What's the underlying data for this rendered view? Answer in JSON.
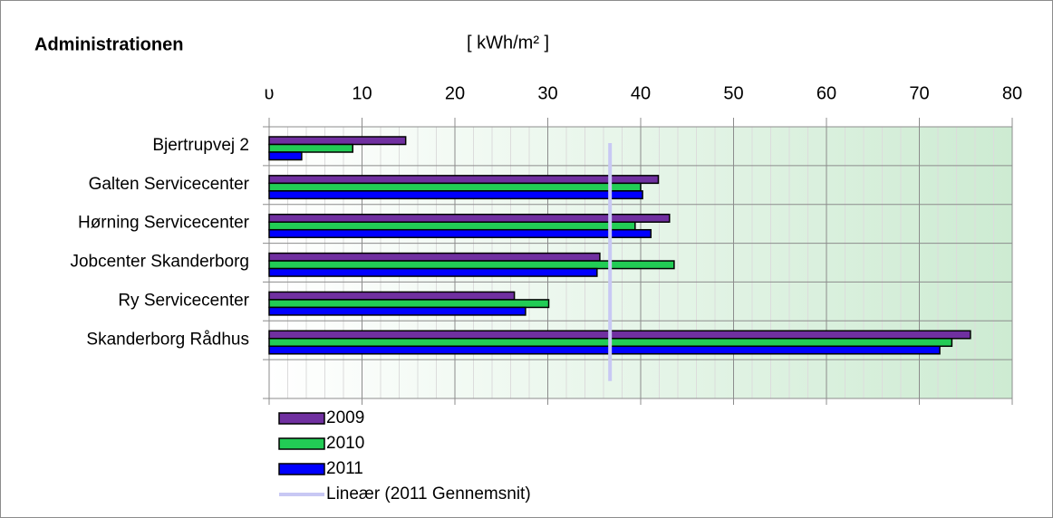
{
  "chart_data": {
    "type": "hbar",
    "title": "Administrationen",
    "unit_label": "[ kWh/m² ]",
    "categories": [
      "Bjertrupvej 2",
      "Galten Servicecenter",
      "Hørning Servicecenter",
      "Jobcenter Skanderborg",
      "Ry Servicecenter",
      "Skanderborg Rådhus",
      null
    ],
    "series": [
      {
        "name": "2009",
        "color": "#7030a0",
        "values": [
          14.7,
          41.9,
          43.1,
          35.6,
          26.4,
          75.5,
          null
        ]
      },
      {
        "name": "2010",
        "color": "#22cc55",
        "values": [
          9.0,
          40.0,
          39.4,
          43.6,
          30.1,
          73.5,
          null
        ]
      },
      {
        "name": "2011",
        "color": "#0000ff",
        "values": [
          3.5,
          40.2,
          41.1,
          35.3,
          27.6,
          72.2,
          null
        ]
      }
    ],
    "trendline": {
      "name": "Lineær (2011 Gennemsnit)",
      "value": 36.7,
      "color": "#c8c8f4"
    },
    "xlim": [
      0,
      80
    ],
    "xticks": [
      {
        "value": 0,
        "label": "υ"
      },
      10,
      20,
      30,
      40,
      50,
      60,
      70,
      80
    ],
    "grid": true
  }
}
